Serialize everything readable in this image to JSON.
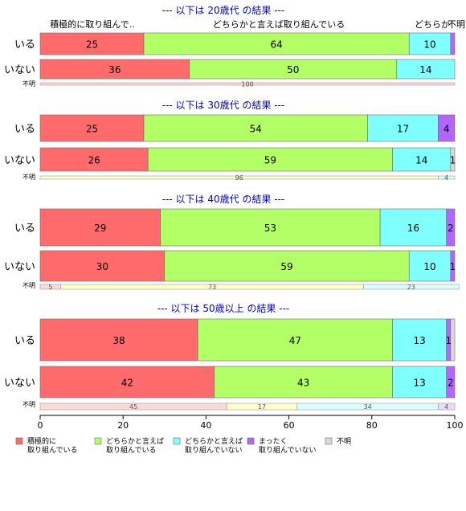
{
  "chart_data": {
    "type": "bar",
    "orientation": "horizontal",
    "stacked": true,
    "xlim": [
      0,
      100
    ],
    "x_ticks": [
      "0",
      "20",
      "40",
      "60",
      "80",
      "100"
    ],
    "header_labels": [
      "積極的に取り組んで..",
      "どちらかと言えば取り組んでいる",
      "どちらか",
      "不明"
    ],
    "legend_position": "bottom",
    "legend": [
      {
        "lines": [
          "積極的に",
          "取り組んでいる"
        ],
        "color": "#ff6b6b"
      },
      {
        "lines": [
          "どちらかと言えば",
          "取り組んでいる"
        ],
        "color": "#b3ff66"
      },
      {
        "lines": [
          "どちらかと言えば",
          "取り組んでいない"
        ],
        "color": "#80ffff"
      },
      {
        "lines": [
          "まったく",
          "取り組んでいない"
        ],
        "color": "#b366ff"
      },
      {
        "lines": [
          "不明"
        ],
        "color": "#d9d9d9"
      }
    ],
    "groups": [
      {
        "title": "--- 以下は 20歳代 の結果 ---",
        "rows": [
          {
            "label": "いる",
            "values": [
              25,
              64,
              10,
              1,
              0
            ],
            "labels": [
              "25",
              "64",
              "10",
              "",
              ""
            ]
          },
          {
            "label": "いない",
            "values": [
              36,
              50,
              14,
              0,
              0
            ],
            "labels": [
              "36",
              "50",
              "14",
              "",
              ""
            ]
          }
        ],
        "unknown": {
          "label": "不明",
          "values": [
            100,
            0,
            0,
            0,
            0
          ],
          "labels": [
            "100",
            "",
            "",
            "",
            ""
          ]
        }
      },
      {
        "title": "--- 以下は 30歳代 の結果 ---",
        "rows": [
          {
            "label": "いる",
            "values": [
              25,
              54,
              17,
              4,
              0
            ],
            "labels": [
              "25",
              "54",
              "17",
              "4",
              ""
            ]
          },
          {
            "label": "いない",
            "values": [
              26,
              59,
              14,
              0,
              1
            ],
            "labels": [
              "26",
              "59",
              "14",
              "",
              "1"
            ]
          }
        ],
        "unknown": {
          "label": "不明",
          "values": [
            0,
            96,
            4,
            0,
            0
          ],
          "labels": [
            "",
            "96",
            "4",
            "",
            ""
          ]
        }
      },
      {
        "title": "--- 以下は 40歳代 の結果 ---",
        "rows": [
          {
            "label": "いる",
            "values": [
              29,
              53,
              16,
              2,
              0
            ],
            "labels": [
              "29",
              "53",
              "16",
              "2",
              ""
            ]
          },
          {
            "label": "いない",
            "values": [
              30,
              59,
              10,
              1,
              0
            ],
            "labels": [
              "30",
              "59",
              "10",
              "1",
              ""
            ]
          }
        ],
        "unknown": {
          "label": "不明",
          "values": [
            5,
            73,
            23,
            0,
            0
          ],
          "labels": [
            "5",
            "73",
            "23",
            "",
            ""
          ]
        }
      },
      {
        "title": "--- 以下は 50歳以上 の結果 ---",
        "rows": [
          {
            "label": "いる",
            "values": [
              38,
              47,
              13,
              1,
              1
            ],
            "labels": [
              "38",
              "47",
              "13",
              "1",
              ""
            ]
          },
          {
            "label": "いない",
            "values": [
              42,
              43,
              13,
              2,
              0
            ],
            "labels": [
              "42",
              "43",
              "13",
              "2",
              ""
            ]
          }
        ],
        "unknown": {
          "label": "不明",
          "values": [
            45,
            17,
            34,
            4,
            0
          ],
          "labels": [
            "45",
            "17",
            "34",
            "4",
            ""
          ]
        }
      }
    ]
  }
}
